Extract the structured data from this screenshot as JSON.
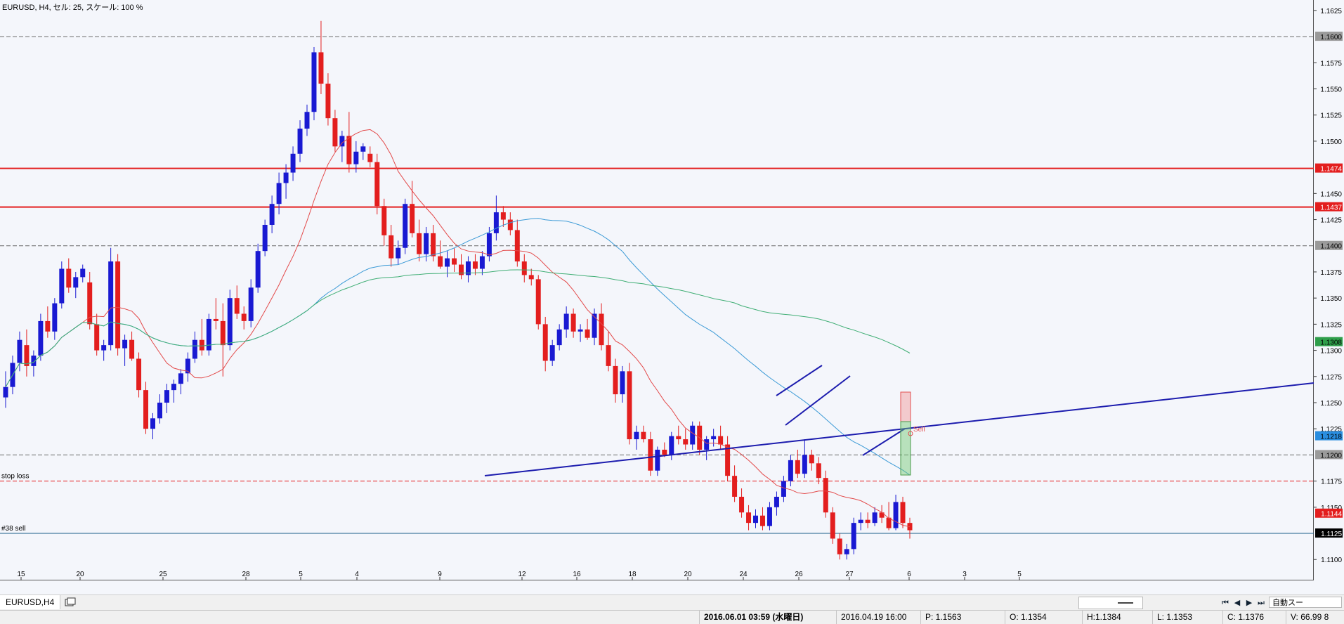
{
  "header": "EURUSD, H4, セル: 25, スケール: 100 %",
  "chart_data": {
    "type": "candlestick",
    "title": "EURUSD, H4",
    "ylim": [
      1.108,
      1.1635
    ],
    "y_ticks": [
      "1.1625",
      "1.1600",
      "1.1575",
      "1.1550",
      "1.1525",
      "1.1500",
      "1.1474",
      "1.1450",
      "1.1437",
      "1.1425",
      "1.1400",
      "1.1375",
      "1.1350",
      "1.1325",
      "1.1308",
      "1.1300",
      "1.1275",
      "1.1250",
      "1.1225",
      "1.1218",
      "1.1200",
      "1.1175",
      "1.1150",
      "1.1144",
      "1.1125",
      "1.1100"
    ],
    "x_ticks": [
      "15",
      "20",
      "25",
      "28",
      "5",
      "4",
      "9",
      "12",
      "16",
      "18",
      "20",
      "24",
      "26",
      "27",
      "6",
      "3",
      "5"
    ],
    "price_labels": [
      {
        "value": "1.1600",
        "color": "#9a9a9a",
        "text_color": "#000000"
      },
      {
        "value": "1.1474",
        "color": "#e31e1e",
        "text_color": "#ffffff"
      },
      {
        "value": "1.1437",
        "color": "#e31e1e",
        "text_color": "#ffffff"
      },
      {
        "value": "1.1400",
        "color": "#9a9a9a",
        "text_color": "#000000"
      },
      {
        "value": "1.1308",
        "color": "#2e9e4a",
        "text_color": "#000000"
      },
      {
        "value": "1.1218",
        "color": "#2a8ee0",
        "text_color": "#000000"
      },
      {
        "value": "1.1200",
        "color": "#9a9a9a",
        "text_color": "#000000"
      },
      {
        "value": "1.1144",
        "color": "#e31e1e",
        "text_color": "#ffffff"
      },
      {
        "value": "1.1125",
        "color": "#000000",
        "text_color": "#ffffff"
      }
    ],
    "hlines": [
      {
        "value": 1.16,
        "style": "dashed",
        "color": "#6a6a6a"
      },
      {
        "value": 1.1474,
        "style": "solid",
        "color": "#e31e1e"
      },
      {
        "value": 1.1437,
        "style": "solid",
        "color": "#e31e1e"
      },
      {
        "value": 1.14,
        "style": "dashed",
        "color": "#6a6a6a"
      },
      {
        "value": 1.12,
        "style": "dashed",
        "color": "#6a6a6a"
      },
      {
        "value": 1.1175,
        "style": "dashed",
        "color": "#e31e1e",
        "label": "stop loss"
      },
      {
        "value": 1.1125,
        "style": "solid",
        "color": "#1a5f8a",
        "label": "#38 sell"
      }
    ],
    "candles_approx": [
      [
        1.1255,
        1.128,
        1.1245,
        1.1265
      ],
      [
        1.1265,
        1.1295,
        1.1258,
        1.1288
      ],
      [
        1.1288,
        1.1318,
        1.128,
        1.131
      ],
      [
        1.1305,
        1.132,
        1.1275,
        1.1285
      ],
      [
        1.1285,
        1.13,
        1.1275,
        1.1295
      ],
      [
        1.1295,
        1.1335,
        1.129,
        1.1328
      ],
      [
        1.1328,
        1.1342,
        1.1312,
        1.1318
      ],
      [
        1.1318,
        1.135,
        1.131,
        1.1345
      ],
      [
        1.1345,
        1.1385,
        1.134,
        1.1378
      ],
      [
        1.1378,
        1.1388,
        1.1355,
        1.136
      ],
      [
        1.136,
        1.1375,
        1.135,
        1.137
      ],
      [
        1.137,
        1.1382,
        1.1365,
        1.1378
      ],
      [
        1.1365,
        1.1375,
        1.132,
        1.1325
      ],
      [
        1.1325,
        1.1335,
        1.1295,
        1.13
      ],
      [
        1.13,
        1.131,
        1.129,
        1.1305
      ],
      [
        1.1305,
        1.1398,
        1.13,
        1.1385
      ],
      [
        1.1385,
        1.1392,
        1.1295,
        1.1302
      ],
      [
        1.1302,
        1.1315,
        1.1285,
        1.131
      ],
      [
        1.131,
        1.1318,
        1.129,
        1.1292
      ],
      [
        1.1292,
        1.1298,
        1.1255,
        1.1262
      ],
      [
        1.1262,
        1.127,
        1.122,
        1.1225
      ],
      [
        1.1225,
        1.124,
        1.1215,
        1.1235
      ],
      [
        1.1235,
        1.1258,
        1.123,
        1.125
      ],
      [
        1.125,
        1.1268,
        1.124,
        1.1262
      ],
      [
        1.1262,
        1.1272,
        1.125,
        1.1268
      ],
      [
        1.1268,
        1.1282,
        1.1258,
        1.1278
      ],
      [
        1.1278,
        1.1298,
        1.127,
        1.1292
      ],
      [
        1.1292,
        1.1318,
        1.1288,
        1.131
      ],
      [
        1.131,
        1.133,
        1.1295,
        1.13
      ],
      [
        1.13,
        1.1335,
        1.1295,
        1.133
      ],
      [
        1.133,
        1.135,
        1.132,
        1.1328
      ],
      [
        1.1328,
        1.1345,
        1.1275,
        1.1305
      ],
      [
        1.1305,
        1.1358,
        1.13,
        1.135
      ],
      [
        1.135,
        1.1362,
        1.133,
        1.1335
      ],
      [
        1.1335,
        1.1342,
        1.132,
        1.1328
      ],
      [
        1.1328,
        1.1368,
        1.1322,
        1.136
      ],
      [
        1.136,
        1.1402,
        1.1355,
        1.1395
      ],
      [
        1.1395,
        1.1425,
        1.139,
        1.142
      ],
      [
        1.142,
        1.1448,
        1.1412,
        1.144
      ],
      [
        1.144,
        1.147,
        1.143,
        1.146
      ],
      [
        1.146,
        1.1478,
        1.1445,
        1.147
      ],
      [
        1.147,
        1.1495,
        1.1462,
        1.1488
      ],
      [
        1.1488,
        1.152,
        1.148,
        1.1512
      ],
      [
        1.1512,
        1.1535,
        1.1505,
        1.1528
      ],
      [
        1.1528,
        1.159,
        1.152,
        1.1585
      ],
      [
        1.1585,
        1.1615,
        1.1545,
        1.1555
      ],
      [
        1.1555,
        1.1565,
        1.1515,
        1.1522
      ],
      [
        1.1522,
        1.153,
        1.149,
        1.1495
      ],
      [
        1.1495,
        1.151,
        1.148,
        1.1505
      ],
      [
        1.1505,
        1.1528,
        1.147,
        1.1478
      ],
      [
        1.1478,
        1.15,
        1.147,
        1.149
      ],
      [
        1.149,
        1.1498,
        1.1482,
        1.1495
      ],
      [
        1.1488,
        1.1495,
        1.1475,
        1.148
      ],
      [
        1.148,
        1.1488,
        1.143,
        1.1438
      ],
      [
        1.1438,
        1.1445,
        1.14,
        1.141
      ],
      [
        1.141,
        1.142,
        1.138,
        1.1388
      ],
      [
        1.1388,
        1.1405,
        1.1382,
        1.1398
      ],
      [
        1.1398,
        1.1445,
        1.1392,
        1.144
      ],
      [
        1.144,
        1.1462,
        1.1408,
        1.1412
      ],
      [
        1.1412,
        1.1425,
        1.1385,
        1.1392
      ],
      [
        1.1392,
        1.1418,
        1.1385,
        1.1412
      ],
      [
        1.1412,
        1.142,
        1.1385,
        1.139
      ],
      [
        1.139,
        1.1405,
        1.1378,
        1.138
      ],
      [
        1.138,
        1.1395,
        1.137,
        1.1388
      ],
      [
        1.1388,
        1.1398,
        1.1375,
        1.1382
      ],
      [
        1.1382,
        1.1392,
        1.1368,
        1.1372
      ],
      [
        1.1372,
        1.139,
        1.1365,
        1.1385
      ],
      [
        1.1385,
        1.1392,
        1.1372,
        1.1378
      ],
      [
        1.1378,
        1.1395,
        1.1372,
        1.139
      ],
      [
        1.139,
        1.1418,
        1.1385,
        1.1412
      ],
      [
        1.1412,
        1.1448,
        1.1405,
        1.1432
      ],
      [
        1.1432,
        1.1438,
        1.1418,
        1.1425
      ],
      [
        1.1425,
        1.1432,
        1.141,
        1.1415
      ],
      [
        1.1415,
        1.1425,
        1.138,
        1.1385
      ],
      [
        1.1385,
        1.1392,
        1.1365,
        1.1372
      ],
      [
        1.1372,
        1.1378,
        1.1362,
        1.1368
      ],
      [
        1.1368,
        1.1372,
        1.132,
        1.1325
      ],
      [
        1.1325,
        1.1332,
        1.128,
        1.129
      ],
      [
        1.129,
        1.131,
        1.1285,
        1.1305
      ],
      [
        1.1305,
        1.1325,
        1.13,
        1.132
      ],
      [
        1.132,
        1.1342,
        1.1312,
        1.1335
      ],
      [
        1.1335,
        1.134,
        1.1312,
        1.1318
      ],
      [
        1.1318,
        1.1325,
        1.1308,
        1.132
      ],
      [
        1.132,
        1.133,
        1.131,
        1.1312
      ],
      [
        1.1312,
        1.134,
        1.1305,
        1.1335
      ],
      [
        1.1335,
        1.1345,
        1.13,
        1.1305
      ],
      [
        1.1305,
        1.1318,
        1.128,
        1.1285
      ],
      [
        1.1285,
        1.1292,
        1.125,
        1.1258
      ],
      [
        1.1258,
        1.1285,
        1.125,
        1.128
      ],
      [
        1.128,
        1.1288,
        1.121,
        1.1215
      ],
      [
        1.1215,
        1.1228,
        1.1205,
        1.1222
      ],
      [
        1.1222,
        1.1228,
        1.1212,
        1.1215
      ],
      [
        1.1215,
        1.1222,
        1.118,
        1.1185
      ],
      [
        1.1185,
        1.1208,
        1.118,
        1.1205
      ],
      [
        1.1205,
        1.1212,
        1.1198,
        1.12
      ],
      [
        1.12,
        1.1222,
        1.1195,
        1.1218
      ],
      [
        1.1218,
        1.1228,
        1.121,
        1.1215
      ],
      [
        1.1215,
        1.1225,
        1.1205,
        1.121
      ],
      [
        1.121,
        1.1232,
        1.1205,
        1.1228
      ],
      [
        1.1228,
        1.1232,
        1.12,
        1.1205
      ],
      [
        1.1205,
        1.1218,
        1.1195,
        1.1215
      ],
      [
        1.1215,
        1.1225,
        1.1208,
        1.1218
      ],
      [
        1.1218,
        1.1228,
        1.1205,
        1.121
      ],
      [
        1.121,
        1.1218,
        1.1175,
        1.118
      ],
      [
        1.118,
        1.119,
        1.1155,
        1.116
      ],
      [
        1.116,
        1.1168,
        1.114,
        1.1145
      ],
      [
        1.1145,
        1.1152,
        1.1128,
        1.1135
      ],
      [
        1.1135,
        1.1148,
        1.113,
        1.1142
      ],
      [
        1.1142,
        1.115,
        1.1128,
        1.1132
      ],
      [
        1.1132,
        1.1155,
        1.1128,
        1.115
      ],
      [
        1.115,
        1.1165,
        1.1142,
        1.116
      ],
      [
        1.116,
        1.118,
        1.1155,
        1.1175
      ],
      [
        1.1175,
        1.12,
        1.117,
        1.1195
      ],
      [
        1.1195,
        1.1205,
        1.1178,
        1.1182
      ],
      [
        1.1182,
        1.1215,
        1.1178,
        1.12
      ],
      [
        1.12,
        1.1205,
        1.1185,
        1.1192
      ],
      [
        1.1192,
        1.1198,
        1.1172,
        1.1178
      ],
      [
        1.1178,
        1.1185,
        1.114,
        1.1145
      ],
      [
        1.1145,
        1.115,
        1.1115,
        1.112
      ],
      [
        1.112,
        1.1125,
        1.11,
        1.1105
      ],
      [
        1.1105,
        1.1115,
        1.11,
        1.111
      ],
      [
        1.111,
        1.114,
        1.1105,
        1.1135
      ],
      [
        1.1135,
        1.1145,
        1.1128,
        1.1138
      ],
      [
        1.1138,
        1.1145,
        1.113,
        1.1135
      ],
      [
        1.1135,
        1.115,
        1.1132,
        1.1145
      ],
      [
        1.1145,
        1.1152,
        1.1135,
        1.114
      ],
      [
        1.114,
        1.1155,
        1.1128,
        1.113
      ],
      [
        1.113,
        1.1162,
        1.1128,
        1.1155
      ],
      [
        1.1155,
        1.116,
        1.113,
        1.1135
      ],
      [
        1.1135,
        1.114,
        1.112,
        1.1128
      ]
    ],
    "trendlines": [
      {
        "from": [
          690,
          677
        ],
        "to": [
          1870,
          545
        ]
      },
      {
        "from": [
          1105,
          563
        ],
        "to": [
          1170,
          520
        ]
      },
      {
        "from": [
          1118,
          605
        ],
        "to": [
          1210,
          535
        ]
      },
      {
        "from": [
          1228,
          648
        ],
        "to": [
          1288,
          610
        ]
      }
    ],
    "box_red": {
      "x": 1282,
      "y1": 558,
      "y2": 600
    },
    "box_green": {
      "x": 1282,
      "y1": 600,
      "y2": 676
    },
    "sell_label": "Sell"
  },
  "tabs": {
    "active": "EURUSD,H4"
  },
  "status": {
    "datetime": "2016.06.01 03:59 (水曜日)",
    "bar_time": "2016.04.19 16:00",
    "p": "P: 1.1563",
    "o": "O: 1.1354",
    "h": "H:1.1384",
    "l": "L: 1.1353",
    "c": "C: 1.1376",
    "v": "V: 66.99 8",
    "auto_scroll": "自動スー"
  }
}
